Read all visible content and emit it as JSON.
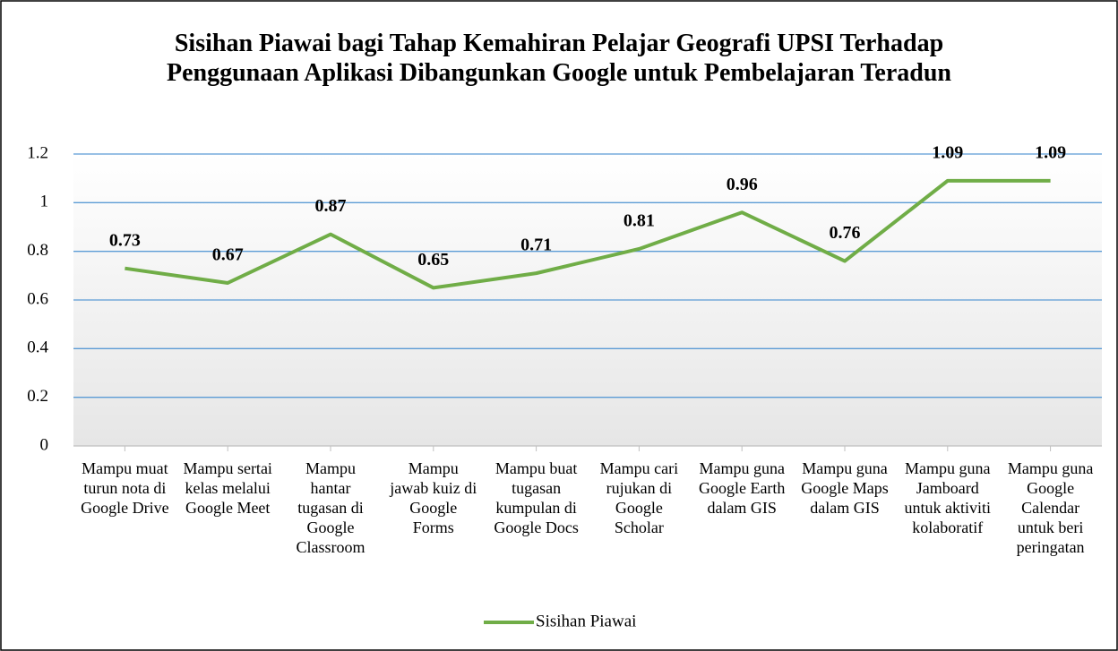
{
  "chart_data": {
    "type": "line",
    "title": "Sisihan Piawai bagi Tahap Kemahiran Pelajar Geografi UPSI Terhadap Penggunaan Aplikasi Dibangunkan Google untuk Pembelajaran Teradun",
    "categories": [
      "Mampu muat turun nota di Google Drive",
      "Mampu sertai kelas melalui Google Meet",
      "Mampu hantar tugasan di Google Classroom",
      "Mampu jawab kuiz di Google Forms",
      "Mampu buat tugasan kumpulan di Google Docs",
      "Mampu cari rujukan di Google Scholar",
      "Mampu guna Google Earth dalam GIS",
      "Mampu guna Google Maps dalam GIS",
      "Mampu guna Jamboard untuk aktiviti kolaboratif",
      "Mampu guna Google Calendar untuk beri peringatan"
    ],
    "series": [
      {
        "name": "Sisihan Piawai",
        "color": "#70ad47",
        "values": [
          0.73,
          0.67,
          0.87,
          0.65,
          0.71,
          0.81,
          0.96,
          0.76,
          1.09,
          1.09
        ]
      }
    ],
    "ylim": [
      0,
      1.2
    ],
    "yticks": [
      0,
      0.2,
      0.4,
      0.6,
      0.8,
      1,
      1.2
    ],
    "grid": true,
    "legend": "bottom"
  }
}
